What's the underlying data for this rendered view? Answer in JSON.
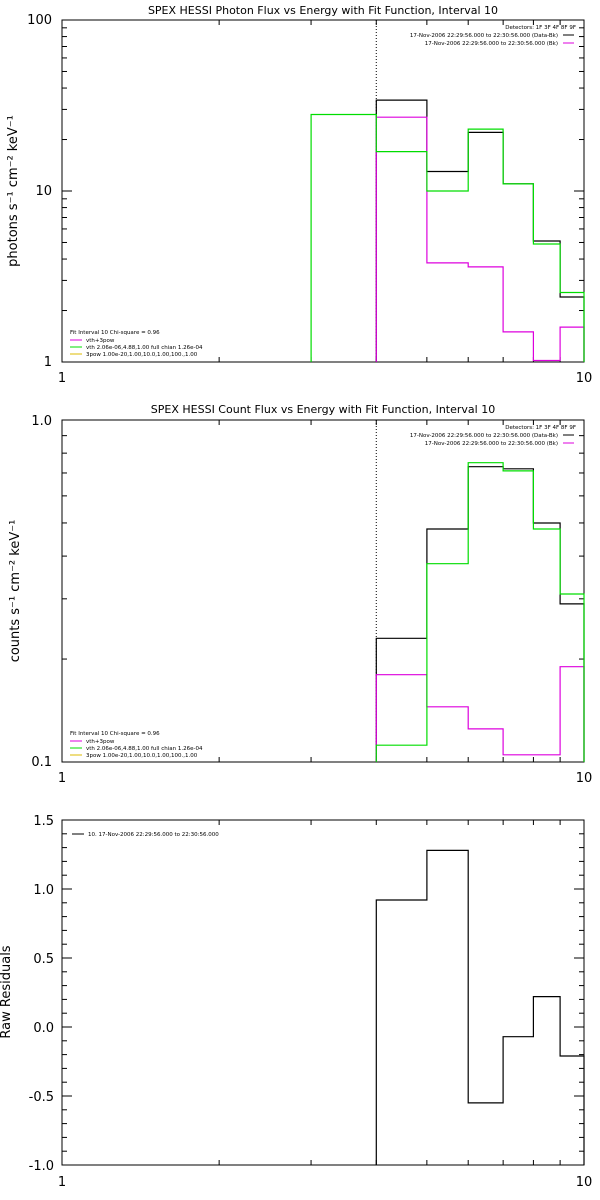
{
  "chart_data": [
    {
      "type": "line",
      "title": "SPEX HESSI Photon Flux vs Energy with Fit Function, Interval 10",
      "xlabel": "",
      "ylabel": "photons s⁻¹ cm⁻² keV⁻¹",
      "x_scale": "log",
      "y_scale": "log",
      "xlim": [
        1,
        10
      ],
      "ylim": [
        1,
        100
      ],
      "x_ticks": [
        "1",
        "10"
      ],
      "y_ticks": [
        "1",
        "10",
        "100"
      ],
      "legend_top": [
        "Detectors: 1F 3F 4F 8F 9F",
        "17-Nov-2006 22:29:56.000 to 22:30:56.000 (Data-Bk)",
        "17-Nov-2006 22:29:56.000 to 22:30:56.000 (Bk)"
      ],
      "legend_bottom": [
        "Fit Interval 10   Chi-square = 0.96",
        "vth+3pow",
        "vth 2.06e-06,4.88,1.00  full chian 1.26e-04",
        "3pow 1.00e-20,1.00,10.0,1.00,100.,1.00"
      ],
      "vline_x": 4.0,
      "series": [
        {
          "color": "#000000",
          "edges": [
            4,
            5,
            6,
            7,
            8,
            9,
            10
          ],
          "values": [
            34,
            13,
            22,
            11,
            5.1,
            2.4
          ]
        },
        {
          "color": "#dd00dd",
          "edges": [
            4,
            5,
            6,
            7,
            8,
            9,
            10
          ],
          "values": [
            27,
            3.8,
            3.6,
            1.5,
            1.02,
            1.6
          ]
        },
        {
          "color": "#00dd00",
          "edges": [
            3,
            4,
            5,
            6,
            7,
            8,
            9,
            10
          ],
          "values": [
            28,
            17,
            10,
            23,
            11,
            4.9,
            2.55
          ]
        }
      ]
    },
    {
      "type": "line",
      "title": "SPEX HESSI Count Flux vs Energy with Fit Function, Interval 10",
      "xlabel": "",
      "ylabel": "counts s⁻¹ cm⁻² keV⁻¹",
      "x_scale": "log",
      "y_scale": "log",
      "xlim": [
        1,
        10
      ],
      "ylim": [
        0.1,
        1.0
      ],
      "x_ticks": [
        "1",
        "10"
      ],
      "y_ticks": [
        "0.1",
        "1.0"
      ],
      "legend_top": [
        "Detectors: 1F 3F 4F 8F 9F",
        "17-Nov-2006 22:29:56.000 to 22:30:56.000 (Data-Bk)",
        "17-Nov-2006 22:29:56.000 to 22:30:56.000 (Bk)"
      ],
      "legend_bottom": [
        "Fit Interval 10   Chi-square = 0.96",
        "vth+3pow",
        "vth 2.06e-06,4.88,1.00  full chian 1.26e-04",
        "3pow 1.00e-20,1.00,10.0,1.00,100.,1.00"
      ],
      "vline_x": 4.0,
      "series": [
        {
          "color": "#000000",
          "edges": [
            4,
            5,
            6,
            7,
            8,
            9,
            10
          ],
          "values": [
            0.23,
            0.48,
            0.73,
            0.72,
            0.5,
            0.29
          ]
        },
        {
          "color": "#dd00dd",
          "edges": [
            4,
            5,
            6,
            7,
            8,
            9,
            10
          ],
          "values": [
            0.18,
            0.145,
            0.125,
            0.105,
            0.105,
            0.19
          ]
        },
        {
          "color": "#00dd00",
          "edges": [
            4,
            5,
            6,
            7,
            8,
            9,
            10
          ],
          "values": [
            0.112,
            0.38,
            0.75,
            0.71,
            0.48,
            0.31
          ]
        }
      ]
    },
    {
      "type": "line",
      "title": "",
      "xlabel": "",
      "ylabel": "Raw Residuals",
      "x_scale": "log",
      "y_scale": "linear",
      "xlim": [
        1,
        10
      ],
      "ylim": [
        -1.0,
        1.5
      ],
      "x_ticks": [
        "1",
        "10"
      ],
      "y_ticks": [
        "-1.0",
        "-0.5",
        "0.0",
        "0.5",
        "1.0",
        "1.5"
      ],
      "legend_top": [
        "10. 17-Nov-2006 22:29:56.000 to 22:30:56.000"
      ],
      "series": [
        {
          "color": "#000000",
          "edges": [
            4,
            5,
            6,
            7,
            8,
            9,
            10
          ],
          "values": [
            0.92,
            1.28,
            -0.55,
            -0.07,
            0.22,
            -0.21
          ]
        }
      ]
    }
  ]
}
